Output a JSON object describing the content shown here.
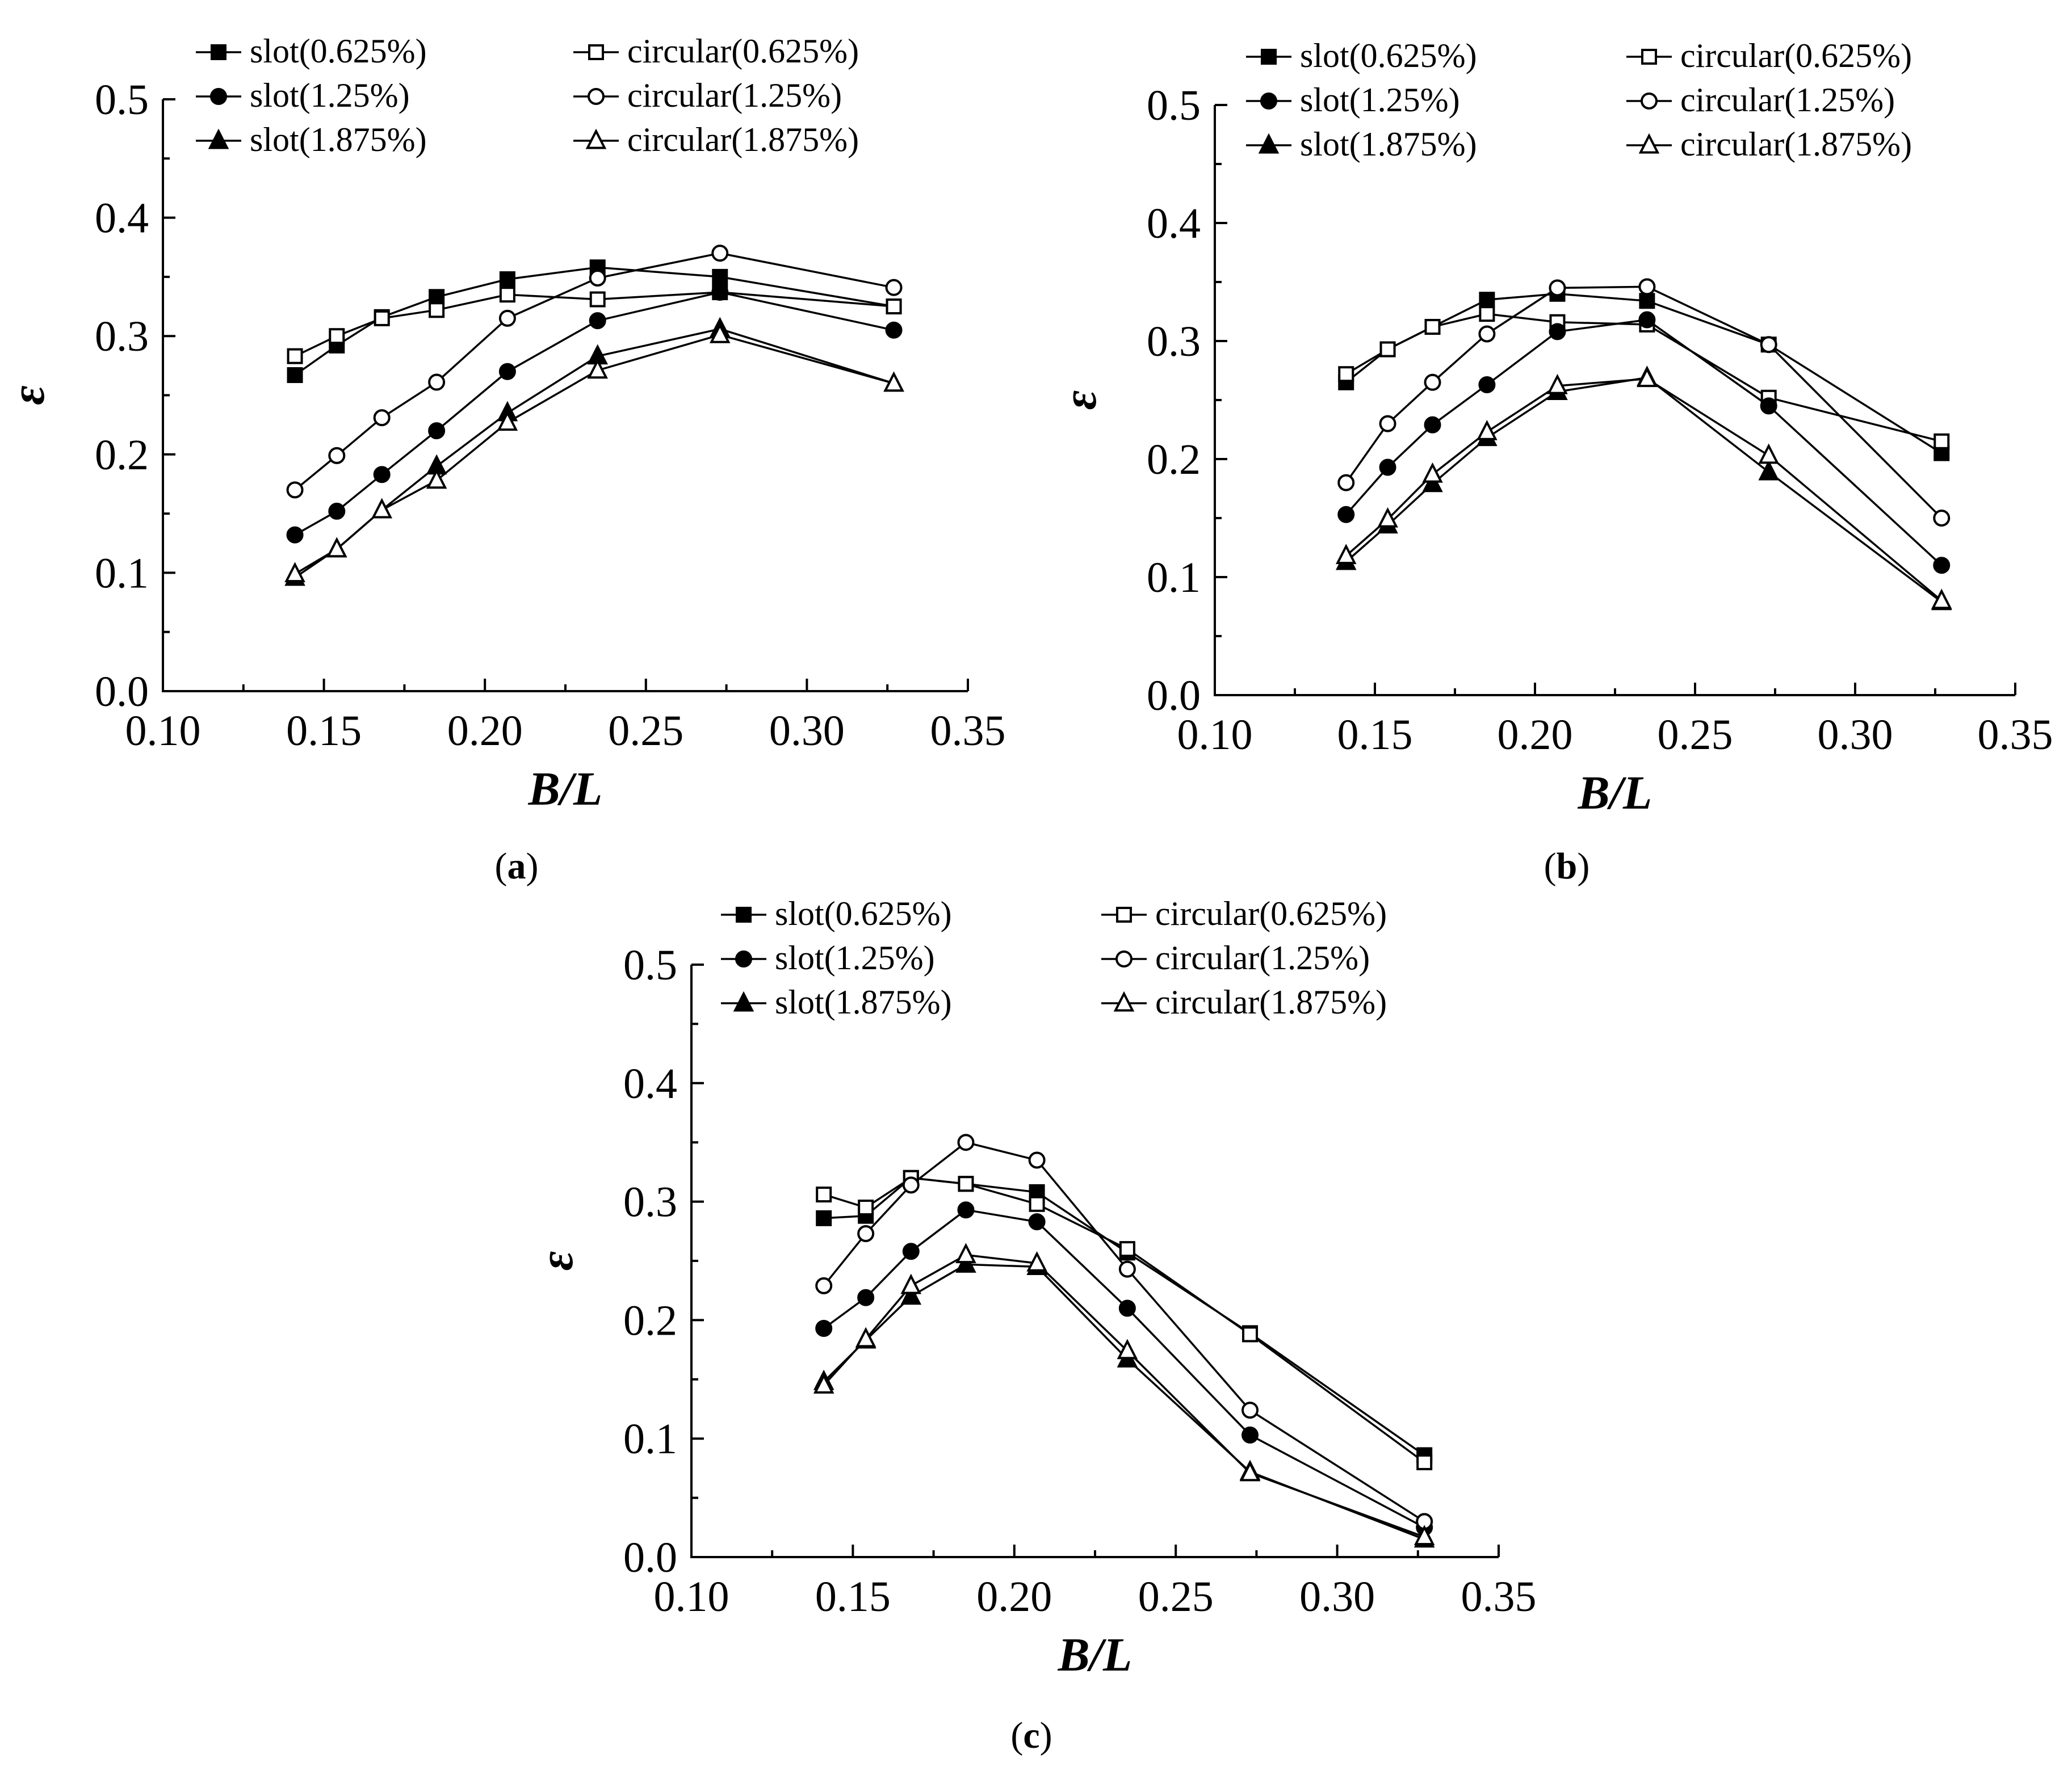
{
  "figure": {
    "panel_labels": [
      "(a)",
      "(b)",
      "(c)"
    ]
  },
  "chart_data": [
    {
      "panel": "(a)",
      "type": "line",
      "xlabel": "B/L",
      "ylabel": "ε",
      "xlim": [
        0.1,
        0.35
      ],
      "ylim": [
        0.0,
        0.5
      ],
      "xticks": [
        "0.10",
        "0.15",
        "0.20",
        "0.25",
        "0.30",
        "0.35"
      ],
      "yticks": [
        "0.0",
        "0.1",
        "0.2",
        "0.3",
        "0.4",
        "0.5"
      ],
      "x": [
        0.141,
        0.154,
        0.168,
        0.185,
        0.207,
        0.235,
        0.273,
        0.327
      ],
      "series": [
        {
          "name": "slot(0.625%)",
          "marker": "square",
          "filled": true,
          "values": [
            0.267,
            0.292,
            0.316,
            0.333,
            0.348,
            0.358,
            0.35,
            0.325
          ]
        },
        {
          "name": "circular(0.625%)",
          "marker": "square",
          "filled": false,
          "values": [
            0.283,
            0.3,
            0.315,
            0.322,
            0.335,
            0.331,
            0.337,
            0.325
          ]
        },
        {
          "name": "slot(1.25%)",
          "marker": "circle",
          "filled": true,
          "values": [
            0.132,
            0.152,
            0.183,
            0.22,
            0.27,
            0.313,
            0.337,
            0.305
          ]
        },
        {
          "name": "circular(1.25%)",
          "marker": "circle",
          "filled": false,
          "values": [
            0.17,
            0.199,
            0.231,
            0.261,
            0.315,
            0.349,
            0.37,
            0.341
          ]
        },
        {
          "name": "slot(1.875%)",
          "marker": "triangle",
          "filled": true,
          "values": [
            0.096,
            0.12,
            0.153,
            0.19,
            0.235,
            0.283,
            0.306,
            0.26
          ]
        },
        {
          "name": "circular(1.875%)",
          "marker": "triangle",
          "filled": false,
          "values": [
            0.099,
            0.12,
            0.153,
            0.178,
            0.227,
            0.271,
            0.301,
            0.26
          ]
        }
      ]
    },
    {
      "panel": "(b)",
      "type": "line",
      "xlabel": "B/L",
      "ylabel": "ε",
      "xlim": [
        0.1,
        0.35
      ],
      "ylim": [
        0.0,
        0.5
      ],
      "xticks": [
        "0.10",
        "0.15",
        "0.20",
        "0.25",
        "0.30",
        "0.35"
      ],
      "yticks": [
        "0.0",
        "0.1",
        "0.2",
        "0.3",
        "0.4",
        "0.5"
      ],
      "x": [
        0.141,
        0.154,
        0.168,
        0.185,
        0.207,
        0.235,
        0.273,
        0.327
      ],
      "series": [
        {
          "name": "slot(0.625%)",
          "marker": "square",
          "filled": true,
          "values": [
            0.265,
            0.293,
            0.312,
            0.335,
            0.34,
            0.334,
            0.297,
            0.205
          ]
        },
        {
          "name": "circular(0.625%)",
          "marker": "square",
          "filled": false,
          "values": [
            0.272,
            0.293,
            0.312,
            0.323,
            0.316,
            0.314,
            0.252,
            0.215
          ]
        },
        {
          "name": "slot(1.25%)",
          "marker": "circle",
          "filled": true,
          "values": [
            0.153,
            0.193,
            0.229,
            0.263,
            0.308,
            0.318,
            0.245,
            0.11
          ]
        },
        {
          "name": "circular(1.25%)",
          "marker": "circle",
          "filled": false,
          "values": [
            0.18,
            0.23,
            0.265,
            0.306,
            0.345,
            0.346,
            0.297,
            0.15
          ]
        },
        {
          "name": "slot(1.875%)",
          "marker": "triangle",
          "filled": true,
          "values": [
            0.113,
            0.144,
            0.179,
            0.218,
            0.257,
            0.269,
            0.189,
            0.079
          ]
        },
        {
          "name": "circular(1.875%)",
          "marker": "triangle",
          "filled": false,
          "values": [
            0.118,
            0.149,
            0.187,
            0.223,
            0.262,
            0.268,
            0.203,
            0.08
          ]
        }
      ]
    },
    {
      "panel": "(c)",
      "type": "line",
      "xlabel": "B/L",
      "ylabel": "ε",
      "xlim": [
        0.1,
        0.35
      ],
      "ylim": [
        0.0,
        0.5
      ],
      "xticks": [
        "0.10",
        "0.15",
        "0.20",
        "0.25",
        "0.30",
        "0.35"
      ],
      "yticks": [
        "0.0",
        "0.1",
        "0.2",
        "0.3",
        "0.4",
        "0.5"
      ],
      "x": [
        0.141,
        0.154,
        0.168,
        0.185,
        0.207,
        0.235,
        0.273,
        0.327
      ],
      "series": [
        {
          "name": "slot(0.625%)",
          "marker": "square",
          "filled": true,
          "values": [
            0.286,
            0.288,
            0.32,
            0.315,
            0.308,
            0.257,
            0.189,
            0.086
          ]
        },
        {
          "name": "circular(0.625%)",
          "marker": "square",
          "filled": false,
          "values": [
            0.306,
            0.295,
            0.32,
            0.315,
            0.298,
            0.26,
            0.188,
            0.08
          ]
        },
        {
          "name": "slot(1.25%)",
          "marker": "circle",
          "filled": true,
          "values": [
            0.193,
            0.219,
            0.258,
            0.293,
            0.283,
            0.21,
            0.103,
            0.025
          ]
        },
        {
          "name": "circular(1.25%)",
          "marker": "circle",
          "filled": false,
          "values": [
            0.229,
            0.273,
            0.314,
            0.35,
            0.335,
            0.243,
            0.124,
            0.03
          ]
        },
        {
          "name": "slot(1.875%)",
          "marker": "triangle",
          "filled": true,
          "values": [
            0.148,
            0.183,
            0.22,
            0.247,
            0.245,
            0.167,
            0.072,
            0.015
          ]
        },
        {
          "name": "circular(1.875%)",
          "marker": "triangle",
          "filled": false,
          "values": [
            0.145,
            0.184,
            0.229,
            0.255,
            0.248,
            0.174,
            0.071,
            0.017
          ]
        }
      ]
    }
  ]
}
